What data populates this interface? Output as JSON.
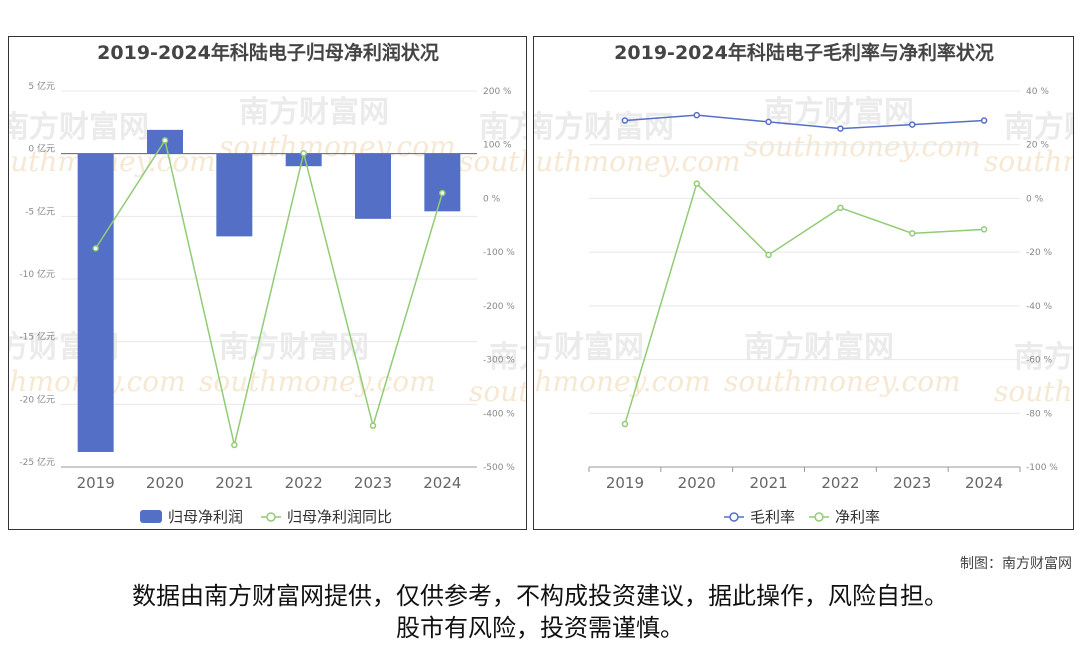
{
  "footer": {
    "credit": "制图：南方财富网",
    "disclaimer_line1": "数据由南方财富网提供，仅供参考，不构成投资建议，据此操作，风险自担。",
    "disclaimer_line2": "股市有风险，投资需谨慎。"
  },
  "watermark": {
    "cn": "南方财富网",
    "en": "southmoney.com"
  },
  "chart_data": [
    {
      "type": "bar",
      "title": "2019-2024年科陆电子归母净利润状况",
      "categories": [
        "2019",
        "2020",
        "2021",
        "2022",
        "2023",
        "2024"
      ],
      "series": [
        {
          "name": "归母净利润",
          "type": "bar",
          "axis": "left",
          "color": "#5470c6",
          "values": [
            -23.8,
            1.9,
            -6.6,
            -1.0,
            -5.2,
            -4.6
          ]
        },
        {
          "name": "归母净利润同比",
          "type": "line",
          "axis": "right",
          "color": "#91cc75",
          "values": [
            -93,
            108,
            -459,
            84,
            -423,
            10
          ]
        }
      ],
      "y_left": {
        "ticks": [
          5,
          0,
          -5,
          -10,
          -15,
          -20,
          -25
        ],
        "labels": [
          "5 亿元",
          "0 亿元",
          "-5 亿元",
          "-10 亿元",
          "-15 亿元",
          "-20 亿元",
          "-25 亿元"
        ],
        "range": [
          -25,
          5
        ]
      },
      "y_right": {
        "ticks": [
          200,
          100,
          0,
          -100,
          -200,
          -300,
          -400,
          -500
        ],
        "labels": [
          "200 %",
          "100 %",
          "0 %",
          "-100 %",
          "-200 %",
          "-300 %",
          "-400 %",
          "-500 %"
        ],
        "range": [
          -500,
          200
        ]
      },
      "grid": true,
      "legend_position": "bottom"
    },
    {
      "type": "line",
      "title": "2019-2024年科陆电子毛利率与净利率状况",
      "categories": [
        "2019",
        "2020",
        "2021",
        "2022",
        "2023",
        "2024"
      ],
      "series": [
        {
          "name": "毛利率",
          "color": "#5470c6",
          "values": [
            29,
            31,
            28.5,
            26,
            27.5,
            29
          ]
        },
        {
          "name": "净利率",
          "color": "#91cc75",
          "values": [
            -84,
            5.5,
            -21,
            -3.5,
            -13,
            -11.5
          ]
        }
      ],
      "y_right": {
        "ticks": [
          40,
          20,
          0,
          -20,
          -40,
          -60,
          -80,
          -100
        ],
        "labels": [
          "40 %",
          "20 %",
          "0 %",
          "-20 %",
          "-40 %",
          "-60 %",
          "-80 %",
          "-100 %"
        ],
        "range": [
          -100,
          40
        ]
      },
      "grid": true,
      "legend_position": "bottom"
    }
  ]
}
